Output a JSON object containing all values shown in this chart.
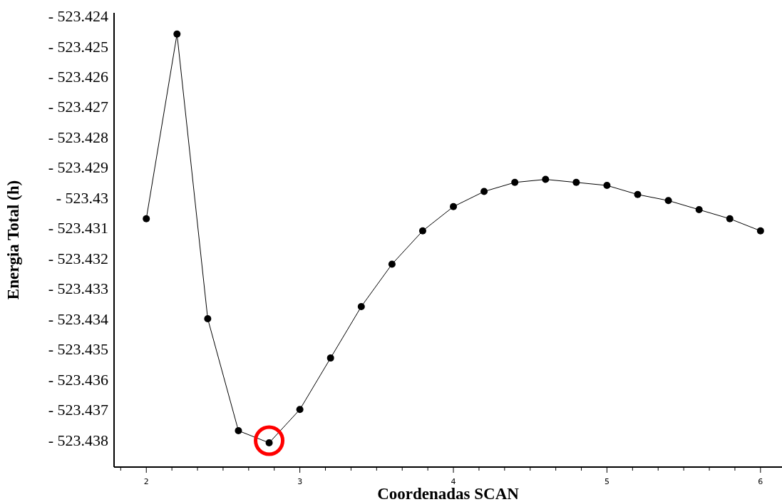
{
  "chart_data": {
    "type": "line",
    "xlabel": "Coordenadas SCAN",
    "ylabel": "Energia Total (h)",
    "x": [
      2.0,
      2.2,
      2.4,
      2.6,
      2.8,
      3.0,
      3.2,
      3.4,
      3.6,
      3.8,
      4.0,
      4.2,
      4.4,
      4.6,
      4.8,
      5.0,
      5.2,
      5.4,
      5.6,
      5.8,
      6.0
    ],
    "series": [
      {
        "color": "#000000",
        "values": [
          -523.4307,
          -523.4246,
          -523.434,
          -523.4377,
          -523.4381,
          -523.437,
          -523.4353,
          -523.4336,
          -523.4322,
          -523.4311,
          -523.4303,
          -523.4298,
          -523.4295,
          -523.4294,
          -523.4295,
          -523.4296,
          -523.4299,
          -523.4301,
          -523.4304,
          -523.4307,
          -523.4311
        ]
      }
    ],
    "xlim": [
      1.79,
      6.14
    ],
    "xticks": [
      {
        "value": 1.8333,
        "label": null
      },
      2,
      {
        "value": 2.1667,
        "label": null
      },
      {
        "value": 2.3333,
        "label": null
      },
      {
        "value": 2.5,
        "label": null
      },
      {
        "value": 2.6667,
        "label": null
      },
      {
        "value": 2.8333,
        "label": null
      },
      3,
      {
        "value": 3.1667,
        "label": null
      },
      {
        "value": 3.3333,
        "label": null
      },
      {
        "value": 3.5,
        "label": null
      },
      {
        "value": 3.6667,
        "label": null
      },
      {
        "value": 3.8333,
        "label": null
      },
      4,
      {
        "value": 4.1667,
        "label": null
      },
      {
        "value": 4.3333,
        "label": null
      },
      {
        "value": 4.5,
        "label": null
      },
      {
        "value": 4.6667,
        "label": null
      },
      {
        "value": 4.8333,
        "label": null
      },
      5,
      {
        "value": 5.1667,
        "label": null
      },
      {
        "value": 5.3333,
        "label": null
      },
      {
        "value": 5.5,
        "label": null
      },
      {
        "value": 5.6667,
        "label": null
      },
      {
        "value": 5.8333,
        "label": null
      },
      6
    ],
    "ylim": [
      -523.4389,
      -523.4239
    ],
    "yticks": [
      {
        "value": -523.424,
        "label": "- 523.424"
      },
      {
        "value": -523.425,
        "label": "- 523.425"
      },
      {
        "value": -523.426,
        "label": "- 523.426"
      },
      {
        "value": -523.427,
        "label": "- 523.427"
      },
      {
        "value": -523.428,
        "label": "- 523.428"
      },
      {
        "value": -523.429,
        "label": "- 523.429"
      },
      {
        "value": -523.43,
        "label": "- 523.43"
      },
      {
        "value": -523.431,
        "label": "- 523.431"
      },
      {
        "value": -523.432,
        "label": "- 523.432"
      },
      {
        "value": -523.433,
        "label": "- 523.433"
      },
      {
        "value": -523.434,
        "label": "- 523.434"
      },
      {
        "value": -523.435,
        "label": "- 523.435"
      },
      {
        "value": -523.436,
        "label": "- 523.436"
      },
      {
        "value": -523.437,
        "label": "- 523.437"
      },
      {
        "value": -523.438,
        "label": "- 523.438"
      }
    ],
    "marker": "circle",
    "grid": false,
    "legend": false
  }
}
